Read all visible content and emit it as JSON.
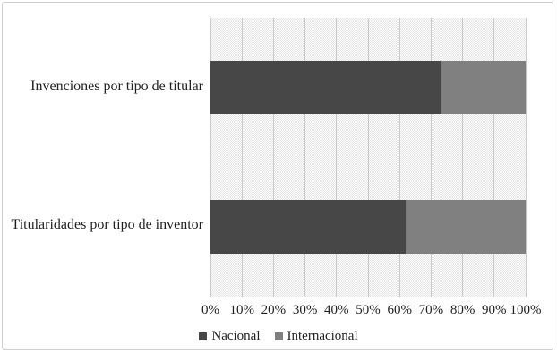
{
  "chart_data": {
    "type": "bar",
    "orientation": "horizontal",
    "stacked": true,
    "title": "",
    "xlabel": "",
    "ylabel": "",
    "categories": [
      "Invenciones por tipo de titular",
      "Titularidades por tipo de inventor"
    ],
    "series": [
      {
        "name": "Nacional",
        "color": "#474747",
        "values": [
          73,
          62
        ]
      },
      {
        "name": "Internacional",
        "color": "#808080",
        "values": [
          27,
          38
        ]
      }
    ],
    "x_ticks": [
      "0%",
      "10%",
      "20%",
      "30%",
      "40%",
      "50%",
      "60%",
      "70%",
      "80%",
      "90%",
      "100%"
    ],
    "xlim": [
      0,
      100
    ],
    "grid": "vertical",
    "plot_background": "dotted-pattern",
    "legend_position": "bottom"
  },
  "colors": {
    "bar_nacional": "#474747",
    "bar_internacional": "#808080",
    "gridline": "#c9c9c9",
    "frame_border": "#cfcfcf",
    "text": "#1f1f1f"
  }
}
